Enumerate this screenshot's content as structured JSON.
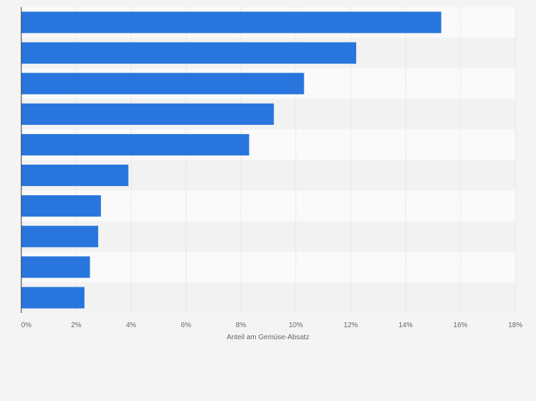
{
  "chart_data": {
    "type": "bar",
    "orientation": "horizontal",
    "categories": [
      "",
      "",
      "",
      "",
      "",
      "",
      "",
      "",
      "",
      ""
    ],
    "values": [
      15.3,
      12.2,
      10.3,
      9.2,
      8.3,
      3.9,
      2.9,
      2.8,
      2.5,
      2.3
    ],
    "title": "",
    "xlabel": "Anteil am Gemüse-Absatz",
    "ylabel": "",
    "xlim": [
      0,
      18
    ],
    "xticks": [
      0,
      2,
      4,
      6,
      8,
      10,
      12,
      14,
      16,
      18
    ],
    "xtick_labels": [
      "0%",
      "2%",
      "4%",
      "6%",
      "8%",
      "10%",
      "12%",
      "14%",
      "16%",
      "18%"
    ],
    "grid": "vertical",
    "legend": "none",
    "colors": {
      "bar": "#2876dd",
      "background": "#f4f4f4",
      "band_light": "#fafafa",
      "band_dark": "#f2f2f2",
      "grid": "#dcdcdc",
      "axis": "#333333",
      "tick_text": "#666666"
    }
  }
}
